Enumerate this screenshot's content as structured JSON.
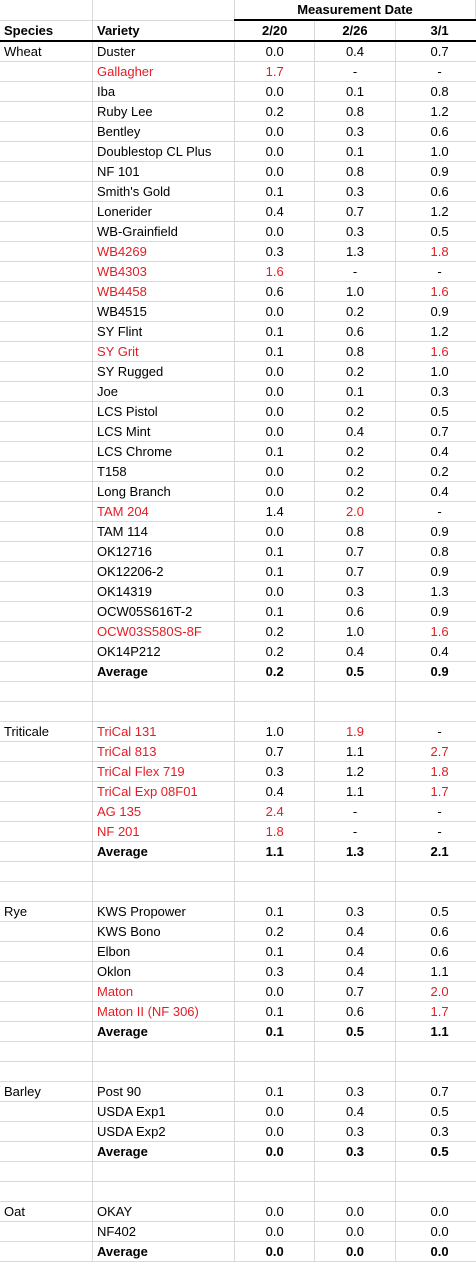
{
  "header": {
    "species_label": "Species",
    "variety_label": "Variety",
    "measurement_label": "Measurement Date",
    "dates": [
      "2/20",
      "2/26",
      "3/1"
    ]
  },
  "groups": [
    {
      "species": "Wheat",
      "rows": [
        {
          "variety": "Duster",
          "v": [
            "0.0",
            "0.4",
            "0.7"
          ],
          "red": [
            false,
            false,
            false,
            false
          ]
        },
        {
          "variety": "Gallagher",
          "v": [
            "1.7",
            "-",
            "-"
          ],
          "red": [
            true,
            true,
            false,
            false
          ]
        },
        {
          "variety": "Iba",
          "v": [
            "0.0",
            "0.1",
            "0.8"
          ],
          "red": [
            false,
            false,
            false,
            false
          ]
        },
        {
          "variety": "Ruby Lee",
          "v": [
            "0.2",
            "0.8",
            "1.2"
          ],
          "red": [
            false,
            false,
            false,
            false
          ]
        },
        {
          "variety": "Bentley",
          "v": [
            "0.0",
            "0.3",
            "0.6"
          ],
          "red": [
            false,
            false,
            false,
            false
          ]
        },
        {
          "variety": "Doublestop CL Plus",
          "v": [
            "0.0",
            "0.1",
            "1.0"
          ],
          "red": [
            false,
            false,
            false,
            false
          ]
        },
        {
          "variety": "NF 101",
          "v": [
            "0.0",
            "0.8",
            "0.9"
          ],
          "red": [
            false,
            false,
            false,
            false
          ]
        },
        {
          "variety": "Smith's Gold",
          "v": [
            "0.1",
            "0.3",
            "0.6"
          ],
          "red": [
            false,
            false,
            false,
            false
          ]
        },
        {
          "variety": "Lonerider",
          "v": [
            "0.4",
            "0.7",
            "1.2"
          ],
          "red": [
            false,
            false,
            false,
            false
          ]
        },
        {
          "variety": "WB-Grainfield",
          "v": [
            "0.0",
            "0.3",
            "0.5"
          ],
          "red": [
            false,
            false,
            false,
            false
          ]
        },
        {
          "variety": "WB4269",
          "v": [
            "0.3",
            "1.3",
            "1.8"
          ],
          "red": [
            true,
            false,
            false,
            true
          ]
        },
        {
          "variety": "WB4303",
          "v": [
            "1.6",
            "-",
            "-"
          ],
          "red": [
            true,
            true,
            false,
            false
          ]
        },
        {
          "variety": "WB4458",
          "v": [
            "0.6",
            "1.0",
            "1.6"
          ],
          "red": [
            true,
            false,
            false,
            true
          ]
        },
        {
          "variety": "WB4515",
          "v": [
            "0.0",
            "0.2",
            "0.9"
          ],
          "red": [
            false,
            false,
            false,
            false
          ]
        },
        {
          "variety": "SY Flint",
          "v": [
            "0.1",
            "0.6",
            "1.2"
          ],
          "red": [
            false,
            false,
            false,
            false
          ]
        },
        {
          "variety": "SY Grit",
          "v": [
            "0.1",
            "0.8",
            "1.6"
          ],
          "red": [
            true,
            false,
            false,
            true
          ]
        },
        {
          "variety": "SY Rugged",
          "v": [
            "0.0",
            "0.2",
            "1.0"
          ],
          "red": [
            false,
            false,
            false,
            false
          ]
        },
        {
          "variety": "Joe",
          "v": [
            "0.0",
            "0.1",
            "0.3"
          ],
          "red": [
            false,
            false,
            false,
            false
          ]
        },
        {
          "variety": "LCS Pistol",
          "v": [
            "0.0",
            "0.2",
            "0.5"
          ],
          "red": [
            false,
            false,
            false,
            false
          ]
        },
        {
          "variety": "LCS Mint",
          "v": [
            "0.0",
            "0.4",
            "0.7"
          ],
          "red": [
            false,
            false,
            false,
            false
          ]
        },
        {
          "variety": "LCS Chrome",
          "v": [
            "0.1",
            "0.2",
            "0.4"
          ],
          "red": [
            false,
            false,
            false,
            false
          ]
        },
        {
          "variety": "T158",
          "v": [
            "0.0",
            "0.2",
            "0.2"
          ],
          "red": [
            false,
            false,
            false,
            false
          ]
        },
        {
          "variety": "Long Branch",
          "v": [
            "0.0",
            "0.2",
            "0.4"
          ],
          "red": [
            false,
            false,
            false,
            false
          ]
        },
        {
          "variety": "TAM 204",
          "v": [
            "1.4",
            "2.0",
            "-"
          ],
          "red": [
            true,
            false,
            true,
            false
          ]
        },
        {
          "variety": "TAM 114",
          "v": [
            "0.0",
            "0.8",
            "0.9"
          ],
          "red": [
            false,
            false,
            false,
            false
          ]
        },
        {
          "variety": "OK12716",
          "v": [
            "0.1",
            "0.7",
            "0.8"
          ],
          "red": [
            false,
            false,
            false,
            false
          ]
        },
        {
          "variety": "OK12206-2",
          "v": [
            "0.1",
            "0.7",
            "0.9"
          ],
          "red": [
            false,
            false,
            false,
            false
          ]
        },
        {
          "variety": "OK14319",
          "v": [
            "0.0",
            "0.3",
            "1.3"
          ],
          "red": [
            false,
            false,
            false,
            false
          ]
        },
        {
          "variety": "OCW05S616T-2",
          "v": [
            "0.1",
            "0.6",
            "0.9"
          ],
          "red": [
            false,
            false,
            false,
            false
          ]
        },
        {
          "variety": "OCW03S580S-8F",
          "v": [
            "0.2",
            "1.0",
            "1.6"
          ],
          "red": [
            true,
            false,
            false,
            true
          ]
        },
        {
          "variety": "OK14P212",
          "v": [
            "0.2",
            "0.4",
            "0.4"
          ],
          "red": [
            false,
            false,
            false,
            false
          ]
        }
      ],
      "average": {
        "label": "Average",
        "v": [
          "0.2",
          "0.5",
          "0.9"
        ]
      }
    },
    {
      "species": "Triticale",
      "rows": [
        {
          "variety": "TriCal 131",
          "v": [
            "1.0",
            "1.9",
            "-"
          ],
          "red": [
            true,
            false,
            true,
            false
          ]
        },
        {
          "variety": "TriCal 813",
          "v": [
            "0.7",
            "1.1",
            "2.7"
          ],
          "red": [
            true,
            false,
            false,
            true
          ]
        },
        {
          "variety": "TriCal Flex 719",
          "v": [
            "0.3",
            "1.2",
            "1.8"
          ],
          "red": [
            true,
            false,
            false,
            true
          ]
        },
        {
          "variety": "TriCal Exp 08F01",
          "v": [
            "0.4",
            "1.1",
            "1.7"
          ],
          "red": [
            true,
            false,
            false,
            true
          ]
        },
        {
          "variety": "AG 135",
          "v": [
            "2.4",
            "-",
            "-"
          ],
          "red": [
            true,
            true,
            false,
            false
          ]
        },
        {
          "variety": "NF 201",
          "v": [
            "1.8",
            "-",
            "-"
          ],
          "red": [
            true,
            true,
            false,
            false
          ]
        }
      ],
      "average": {
        "label": "Average",
        "v": [
          "1.1",
          "1.3",
          "2.1"
        ]
      }
    },
    {
      "species": "Rye",
      "rows": [
        {
          "variety": "KWS Propower",
          "v": [
            "0.1",
            "0.3",
            "0.5"
          ],
          "red": [
            false,
            false,
            false,
            false
          ]
        },
        {
          "variety": "KWS Bono",
          "v": [
            "0.2",
            "0.4",
            "0.6"
          ],
          "red": [
            false,
            false,
            false,
            false
          ]
        },
        {
          "variety": "Elbon",
          "v": [
            "0.1",
            "0.4",
            "0.6"
          ],
          "red": [
            false,
            false,
            false,
            false
          ]
        },
        {
          "variety": "Oklon",
          "v": [
            "0.3",
            "0.4",
            "1.1"
          ],
          "red": [
            false,
            false,
            false,
            false
          ]
        },
        {
          "variety": "Maton",
          "v": [
            "0.0",
            "0.7",
            "2.0"
          ],
          "red": [
            true,
            false,
            false,
            true
          ]
        },
        {
          "variety": "Maton II (NF 306)",
          "v": [
            "0.1",
            "0.6",
            "1.7"
          ],
          "red": [
            true,
            false,
            false,
            true
          ]
        }
      ],
      "average": {
        "label": "Average",
        "v": [
          "0.1",
          "0.5",
          "1.1"
        ]
      }
    },
    {
      "species": "Barley",
      "rows": [
        {
          "variety": "Post 90",
          "v": [
            "0.1",
            "0.3",
            "0.7"
          ],
          "red": [
            false,
            false,
            false,
            false
          ]
        },
        {
          "variety": "USDA Exp1",
          "v": [
            "0.0",
            "0.4",
            "0.5"
          ],
          "red": [
            false,
            false,
            false,
            false
          ]
        },
        {
          "variety": "USDA Exp2",
          "v": [
            "0.0",
            "0.3",
            "0.3"
          ],
          "red": [
            false,
            false,
            false,
            false
          ]
        }
      ],
      "average": {
        "label": "Average",
        "v": [
          "0.0",
          "0.3",
          "0.5"
        ]
      }
    },
    {
      "species": "Oat",
      "rows": [
        {
          "variety": "OKAY",
          "v": [
            "0.0",
            "0.0",
            "0.0"
          ],
          "red": [
            false,
            false,
            false,
            false
          ]
        },
        {
          "variety": "NF402",
          "v": [
            "0.0",
            "0.0",
            "0.0"
          ],
          "red": [
            false,
            false,
            false,
            false
          ]
        }
      ],
      "average": {
        "label": "Average",
        "v": [
          "0.0",
          "0.0",
          "0.0"
        ]
      }
    }
  ],
  "colors": {
    "highlight": "#e51c23",
    "text": "#000000",
    "gridline": "#d9d9d9"
  }
}
